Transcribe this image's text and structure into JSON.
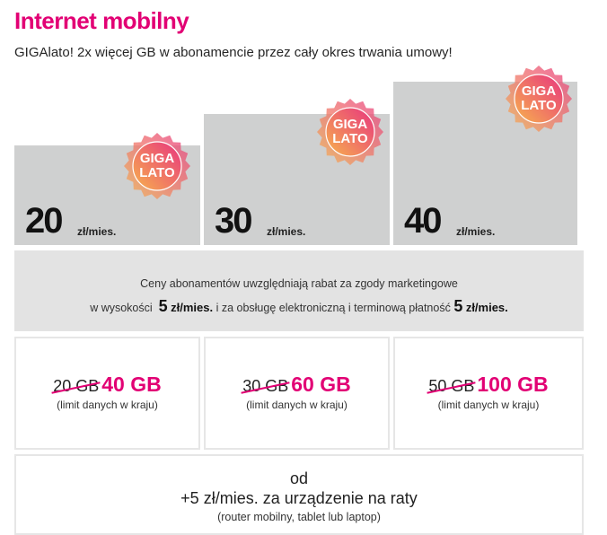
{
  "header": {
    "title": "Internet mobilny",
    "subtitle": "GIGAlato! 2x więcej GB w abonamencie przez cały okres trwania umowy!"
  },
  "badge": {
    "line1": "GIGA",
    "line2": "LATO",
    "colors": [
      "#e8357f",
      "#f7b24d"
    ]
  },
  "plans": [
    {
      "price": "20",
      "unit": "zł/mies.",
      "old_gb": "20 GB",
      "new_gb": "40 GB",
      "limit": "(limit danych w kraju)"
    },
    {
      "price": "30",
      "unit": "zł/mies.",
      "old_gb": "30 GB",
      "new_gb": "60 GB",
      "limit": "(limit danych w kraju)"
    },
    {
      "price": "40",
      "unit": "zł/mies.",
      "old_gb": "50 GB",
      "new_gb": "100 GB",
      "limit": "(limit danych w kraju)"
    }
  ],
  "info": {
    "line1": "Ceny abonamentów uwzględniają rabat za zgody marketingowe",
    "pre": "w wysokości",
    "amount1": "5",
    "unit1": "zł/mies.",
    "mid": "i za obsługę elektroniczną i terminową płatność",
    "amount2": "5",
    "unit2": "zł/mies."
  },
  "device": {
    "line1": "od",
    "line2": "+5 zł/mies. za urządzenie na raty",
    "line3": "(router mobilny, tablet lub laptop)"
  },
  "colors": {
    "accent": "#e20074",
    "price_box": "#cfd0d0",
    "info_box": "#e3e3e3"
  }
}
